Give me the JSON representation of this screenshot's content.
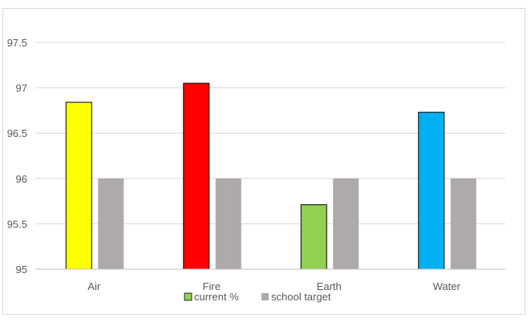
{
  "chart_data": {
    "type": "bar",
    "categories": [
      "Air",
      "Fire",
      "Earth",
      "Water"
    ],
    "series": [
      {
        "name": "current %",
        "values": [
          96.84,
          97.05,
          95.71,
          96.73
        ],
        "colors": [
          "#ffff00",
          "#ff0000",
          "#92d050",
          "#00b0f0"
        ]
      },
      {
        "name": "school target",
        "values": [
          96,
          96,
          96,
          96
        ],
        "colors": [
          "#aeaaaa",
          "#aeaaaa",
          "#aeaaaa",
          "#aeaaaa"
        ]
      }
    ],
    "ylim": [
      95,
      97.5
    ],
    "yticks": [
      "95",
      "95.5",
      "96",
      "96.5",
      "97",
      "97.5"
    ],
    "ytick_values": [
      95,
      95.5,
      96,
      96.5,
      97,
      97.5
    ],
    "grid": true,
    "legend_position": "bottom",
    "legend": [
      {
        "label": "current %",
        "color": "#92d050"
      },
      {
        "label": "school target",
        "color": "#aeaaaa"
      }
    ],
    "title": "",
    "xlabel": "",
    "ylabel": ""
  }
}
